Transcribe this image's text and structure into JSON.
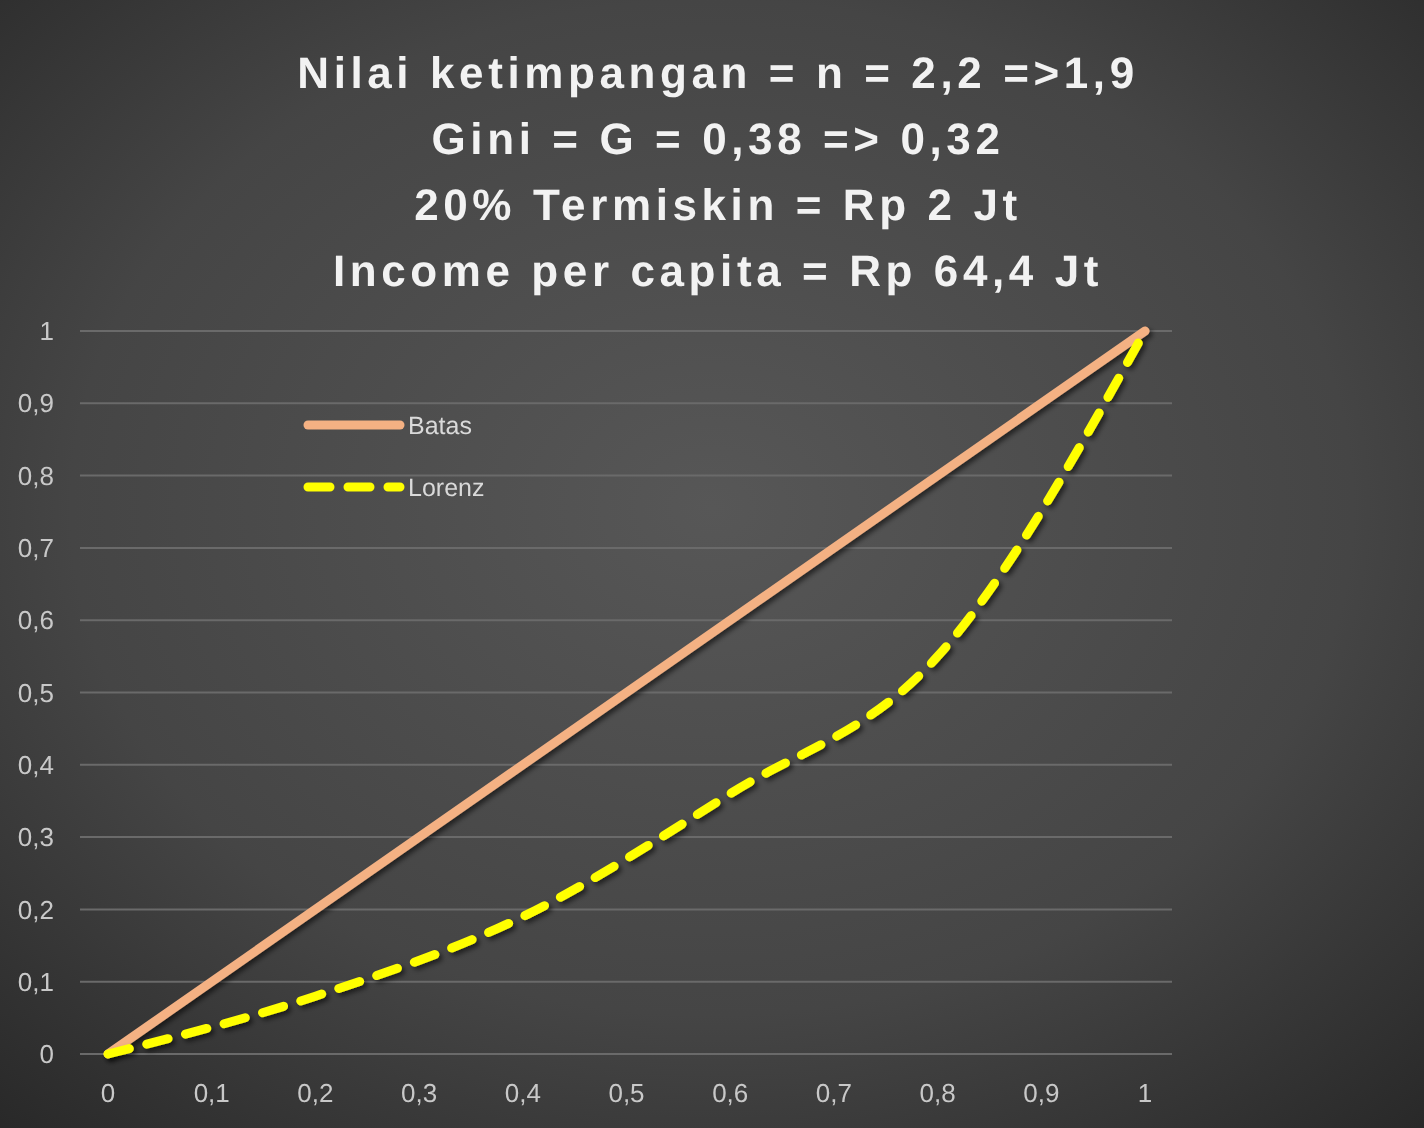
{
  "chart_data": {
    "type": "line",
    "title": "Nilai ketimpangan = n = 2,2 =>1,9\nGini = G = 0,38 => 0,32\n20% Termiskin = Rp 2 Jt\nIncome per capita = Rp 64,4 Jt",
    "x": [
      0,
      0.2,
      0.4,
      0.6,
      0.8,
      1
    ],
    "series": [
      {
        "name": "Batas",
        "color": "#f4b183",
        "x": [
          0,
          1
        ],
        "values": [
          0,
          1
        ],
        "line_style": "solid"
      },
      {
        "name": "Lorenz",
        "color": "#ffff00",
        "values": [
          0,
          0.08,
          0.19,
          0.36,
          0.55,
          1
        ],
        "line_style": "dashed"
      }
    ],
    "xlim": [
      -0.027,
      1.026
    ],
    "ylim": [
      0,
      1
    ],
    "xticks": [
      0,
      {
        "value": 0.1,
        "label": "0,1"
      },
      {
        "value": 0.2,
        "label": "0,2"
      },
      {
        "value": 0.3,
        "label": "0,3"
      },
      {
        "value": 0.4,
        "label": "0,4"
      },
      {
        "value": 0.5,
        "label": "0,5"
      },
      {
        "value": 0.6,
        "label": "0,6"
      },
      {
        "value": 0.7,
        "label": "0,7"
      },
      {
        "value": 0.8,
        "label": "0,8"
      },
      {
        "value": 0.9,
        "label": "0,9"
      },
      1
    ],
    "yticks": [
      0,
      {
        "value": 0.1,
        "label": "0,1"
      },
      {
        "value": 0.2,
        "label": "0,2"
      },
      {
        "value": 0.3,
        "label": "0,3"
      },
      {
        "value": 0.4,
        "label": "0,4"
      },
      {
        "value": 0.5,
        "label": "0,5"
      },
      {
        "value": 0.6,
        "label": "0,6"
      },
      {
        "value": 0.7,
        "label": "0,7"
      },
      {
        "value": 0.8,
        "label": "0,8"
      },
      {
        "value": 0.9,
        "label": "0,9"
      },
      1
    ],
    "grid": "y",
    "legend": "top left"
  }
}
